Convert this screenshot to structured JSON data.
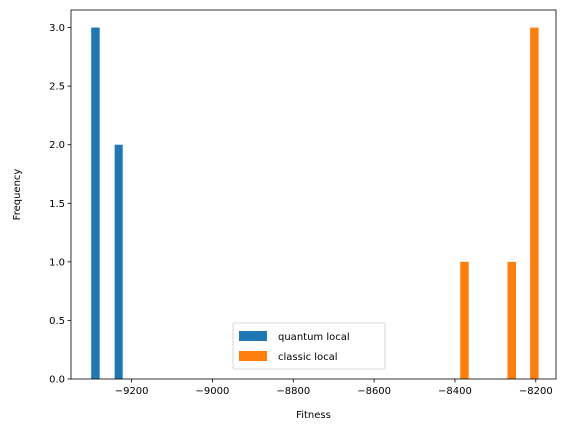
{
  "chart_data": {
    "type": "bar",
    "xlabel": "Fitness",
    "ylabel": "Frequency",
    "xlim": [
      -9350,
      -8150
    ],
    "ylim": [
      0,
      3.15
    ],
    "x_ticks": [
      -9200,
      -9000,
      -8800,
      -8600,
      -8400,
      -8200
    ],
    "x_tick_labels": [
      "−9200",
      "−9000",
      "−8800",
      "−8600",
      "−8400",
      "−8200"
    ],
    "y_ticks": [
      0,
      0.5,
      1,
      1.5,
      2,
      2.5,
      3
    ],
    "y_tick_labels": [
      "0.0",
      "0.5",
      "1.0",
      "1.5",
      "2.0",
      "2.5",
      "3.0"
    ],
    "grid": false,
    "legend_position": "bottom-center",
    "series": [
      {
        "name": "quantum local",
        "color": "#1f77b4",
        "bars": [
          {
            "x_start": -9300,
            "x_end": -9279,
            "count": 3
          },
          {
            "x_start": -9242,
            "x_end": -9222,
            "count": 2
          }
        ]
      },
      {
        "name": "classic local",
        "color": "#ff7f0e",
        "bars": [
          {
            "x_start": -8387,
            "x_end": -8366,
            "count": 1
          },
          {
            "x_start": -8270,
            "x_end": -8249,
            "count": 1
          },
          {
            "x_start": -8214,
            "x_end": -8193,
            "count": 3
          }
        ]
      }
    ]
  }
}
